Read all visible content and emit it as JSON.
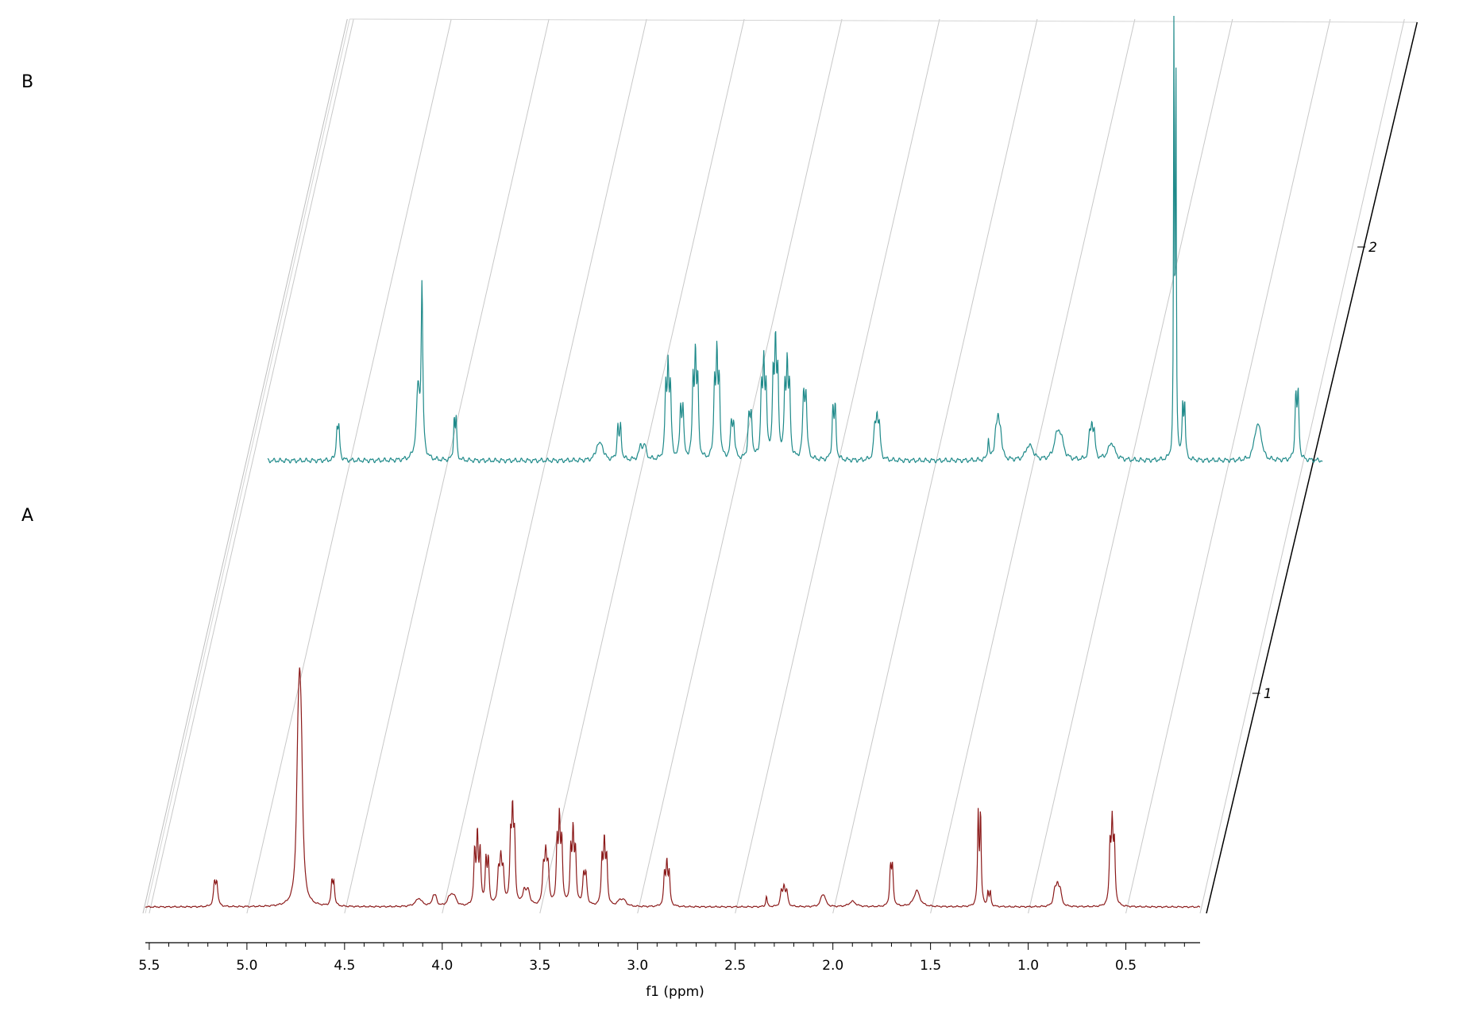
{
  "chart_data": {
    "type": "line",
    "subtype": "stacked-nmr-spectra",
    "xlabel": "f1 (ppm)",
    "xlim": [
      5.52,
      0.12
    ],
    "x_reversed": true,
    "grid": true,
    "x_ticks": [
      5.5,
      5.0,
      4.5,
      4.0,
      3.5,
      3.0,
      2.5,
      2.0,
      1.5,
      1.0,
      0.5
    ],
    "x_tick_labels": [
      "5.5",
      "5.0",
      "4.5",
      "4.0",
      "3.5",
      "3.0",
      "2.5",
      "2.0",
      "1.5",
      "1.0",
      "0.5"
    ],
    "z_ticks": [
      1,
      2
    ],
    "z_tick_labels": [
      "1",
      "2"
    ],
    "series": [
      {
        "name": "A",
        "index": 1,
        "color": "#8b1a1a",
        "peaks": [
          {
            "ppm": 5.16,
            "height": 0.22,
            "width": 0.006,
            "n": 2,
            "j": 0.012
          },
          {
            "ppm": 4.73,
            "height": 1.0,
            "width": 0.009,
            "n": 3,
            "j": 0.009
          },
          {
            "ppm": 4.56,
            "height": 0.22,
            "width": 0.005,
            "n": 2,
            "j": 0.01
          },
          {
            "ppm": 4.12,
            "height": 0.06,
            "width": 0.02,
            "n": 1,
            "j": 0
          },
          {
            "ppm": 4.04,
            "height": 0.08,
            "width": 0.008,
            "n": 2,
            "j": 0.012
          },
          {
            "ppm": 3.95,
            "height": 0.06,
            "width": 0.012,
            "n": 3,
            "j": 0.015
          },
          {
            "ppm": 3.82,
            "height": 0.5,
            "width": 0.005,
            "n": 3,
            "j": 0.014
          },
          {
            "ppm": 3.77,
            "height": 0.42,
            "width": 0.005,
            "n": 2,
            "j": 0.012
          },
          {
            "ppm": 3.7,
            "height": 0.3,
            "width": 0.006,
            "n": 3,
            "j": 0.012
          },
          {
            "ppm": 3.64,
            "height": 0.6,
            "width": 0.005,
            "n": 3,
            "j": 0.01
          },
          {
            "ppm": 3.57,
            "height": 0.14,
            "width": 0.01,
            "n": 2,
            "j": 0.02
          },
          {
            "ppm": 3.47,
            "height": 0.34,
            "width": 0.006,
            "n": 3,
            "j": 0.012
          },
          {
            "ppm": 3.4,
            "height": 0.58,
            "width": 0.005,
            "n": 3,
            "j": 0.012
          },
          {
            "ppm": 3.33,
            "height": 0.5,
            "width": 0.005,
            "n": 3,
            "j": 0.012
          },
          {
            "ppm": 3.27,
            "height": 0.28,
            "width": 0.006,
            "n": 2,
            "j": 0.012
          },
          {
            "ppm": 3.17,
            "height": 0.44,
            "width": 0.005,
            "n": 3,
            "j": 0.012
          },
          {
            "ppm": 3.08,
            "height": 0.05,
            "width": 0.015,
            "n": 2,
            "j": 0.02
          },
          {
            "ppm": 2.85,
            "height": 0.3,
            "width": 0.005,
            "n": 3,
            "j": 0.012
          },
          {
            "ppm": 2.34,
            "height": 0.08,
            "width": 0.004,
            "n": 1,
            "j": 0
          },
          {
            "ppm": 2.25,
            "height": 0.14,
            "width": 0.006,
            "n": 3,
            "j": 0.014
          },
          {
            "ppm": 2.05,
            "height": 0.08,
            "width": 0.01,
            "n": 2,
            "j": 0.012
          },
          {
            "ppm": 1.9,
            "height": 0.04,
            "width": 0.02,
            "n": 1,
            "j": 0
          },
          {
            "ppm": 1.7,
            "height": 0.36,
            "width": 0.005,
            "n": 2,
            "j": 0.01
          },
          {
            "ppm": 1.57,
            "height": 0.12,
            "width": 0.018,
            "n": 1,
            "j": 0
          },
          {
            "ppm": 1.25,
            "height": 0.88,
            "width": 0.004,
            "n": 2,
            "j": 0.012
          },
          {
            "ppm": 1.2,
            "height": 0.14,
            "width": 0.004,
            "n": 2,
            "j": 0.012
          },
          {
            "ppm": 0.85,
            "height": 0.14,
            "width": 0.008,
            "n": 3,
            "j": 0.014
          },
          {
            "ppm": 0.57,
            "height": 0.56,
            "width": 0.005,
            "n": 3,
            "j": 0.011
          }
        ]
      },
      {
        "name": "B",
        "index": 2,
        "color": "#1f8a8a",
        "peaks": [
          {
            "ppm": 5.16,
            "height": 0.09,
            "width": 0.005,
            "n": 2,
            "j": 0.01
          },
          {
            "ppm": 4.73,
            "height": 0.38,
            "width": 0.005,
            "n": 1,
            "j": 0
          },
          {
            "ppm": 4.75,
            "height": 0.16,
            "width": 0.01,
            "n": 1,
            "j": 0
          },
          {
            "ppm": 4.56,
            "height": 0.12,
            "width": 0.004,
            "n": 2,
            "j": 0.01
          },
          {
            "ppm": 3.82,
            "height": 0.04,
            "width": 0.012,
            "n": 2,
            "j": 0.02
          },
          {
            "ppm": 3.72,
            "height": 0.1,
            "width": 0.005,
            "n": 2,
            "j": 0.014
          },
          {
            "ppm": 3.6,
            "height": 0.04,
            "width": 0.01,
            "n": 2,
            "j": 0.02
          },
          {
            "ppm": 3.47,
            "height": 0.2,
            "width": 0.005,
            "n": 3,
            "j": 0.012
          },
          {
            "ppm": 3.4,
            "height": 0.15,
            "width": 0.005,
            "n": 2,
            "j": 0.012
          },
          {
            "ppm": 3.33,
            "height": 0.22,
            "width": 0.005,
            "n": 3,
            "j": 0.012
          },
          {
            "ppm": 3.22,
            "height": 0.22,
            "width": 0.005,
            "n": 3,
            "j": 0.012
          },
          {
            "ppm": 3.14,
            "height": 0.1,
            "width": 0.006,
            "n": 2,
            "j": 0.012
          },
          {
            "ppm": 3.05,
            "height": 0.12,
            "width": 0.006,
            "n": 2,
            "j": 0.012
          },
          {
            "ppm": 2.98,
            "height": 0.2,
            "width": 0.005,
            "n": 3,
            "j": 0.012
          },
          {
            "ppm": 2.92,
            "height": 0.24,
            "width": 0.005,
            "n": 3,
            "j": 0.012
          },
          {
            "ppm": 2.86,
            "height": 0.2,
            "width": 0.005,
            "n": 3,
            "j": 0.012
          },
          {
            "ppm": 2.77,
            "height": 0.18,
            "width": 0.006,
            "n": 2,
            "j": 0.012
          },
          {
            "ppm": 2.62,
            "height": 0.15,
            "width": 0.005,
            "n": 2,
            "j": 0.012
          },
          {
            "ppm": 2.4,
            "height": 0.09,
            "width": 0.006,
            "n": 3,
            "j": 0.012
          },
          {
            "ppm": 1.83,
            "height": 0.05,
            "width": 0.004,
            "n": 1,
            "j": 0
          },
          {
            "ppm": 1.78,
            "height": 0.07,
            "width": 0.008,
            "n": 3,
            "j": 0.012
          },
          {
            "ppm": 1.62,
            "height": 0.03,
            "width": 0.015,
            "n": 2,
            "j": 0.02
          },
          {
            "ppm": 1.47,
            "height": 0.04,
            "width": 0.015,
            "n": 3,
            "j": 0.015
          },
          {
            "ppm": 1.3,
            "height": 0.07,
            "width": 0.006,
            "n": 3,
            "j": 0.012
          },
          {
            "ppm": 1.2,
            "height": 0.04,
            "width": 0.02,
            "n": 1,
            "j": 0
          },
          {
            "ppm": 0.88,
            "height": 1.0,
            "width": 0.0025,
            "n": 1,
            "j": 0
          },
          {
            "ppm": 0.87,
            "height": 0.92,
            "width": 0.0025,
            "n": 1,
            "j": 0
          },
          {
            "ppm": 0.83,
            "height": 0.16,
            "width": 0.004,
            "n": 2,
            "j": 0.01
          },
          {
            "ppm": 0.45,
            "height": 0.05,
            "width": 0.012,
            "n": 3,
            "j": 0.014
          },
          {
            "ppm": 0.25,
            "height": 0.19,
            "width": 0.005,
            "n": 2,
            "j": 0.012
          }
        ]
      }
    ]
  }
}
